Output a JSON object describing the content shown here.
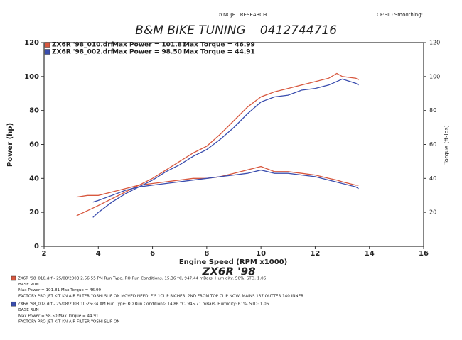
{
  "chart_data": {
    "type": "line",
    "header_left": "DYNOJET RESEARCH",
    "header_right": "CF:SID Smoothing:",
    "title": "B&M BIKE TUNING",
    "phone": "0412744716",
    "subtitle": "ZX6R '98",
    "x_label": "Engine Speed (RPM x1000)",
    "y_label": "Power (hp)",
    "y2_label": "Torque (ft-lbs)",
    "xlim": [
      2,
      16
    ],
    "xticks": [
      2,
      4,
      6,
      8,
      10,
      12,
      14,
      16
    ],
    "ylim": [
      0,
      120
    ],
    "yticks": [
      0,
      20,
      40,
      60,
      80,
      100,
      120
    ],
    "y2lim": [
      0,
      120
    ],
    "y2ticks": [
      20,
      40,
      60,
      80,
      100,
      120
    ],
    "series": [
      {
        "name": "ZX6R '98_010.drf",
        "color": "#d8583f",
        "max_power_label": "Max Power = 101.81",
        "max_torque_label": "Max Torque = 46.99",
        "x": [
          3.2,
          3.6,
          4,
          4.5,
          5,
          5.5,
          6,
          6.5,
          7,
          7.5,
          8,
          8.5,
          9,
          9.5,
          10,
          10.5,
          11,
          11.5,
          12,
          12.5,
          12.8,
          13,
          13.5,
          13.6
        ],
        "values": [
          18,
          21,
          24,
          28,
          32,
          36,
          40,
          45,
          50,
          55,
          59,
          66,
          74,
          82,
          88,
          91,
          93,
          95,
          97,
          99,
          101.81,
          100,
          99,
          98
        ],
        "torque": [
          29,
          30,
          30,
          32,
          34,
          36,
          37,
          38,
          39,
          40,
          40,
          41,
          43,
          45,
          46.99,
          44,
          44,
          43,
          42,
          40,
          39,
          38,
          36,
          36
        ]
      },
      {
        "name": "ZX6R '98_002.drf",
        "color": "#3a4dae",
        "max_power_label": "Max Power = 98.50",
        "max_torque_label": "Max Torque = 44.91",
        "x": [
          3.8,
          4,
          4.5,
          5,
          5.5,
          6,
          6.5,
          7,
          7.5,
          8,
          8.5,
          9,
          9.5,
          10,
          10.5,
          11,
          11.5,
          12,
          12.5,
          13,
          13.5,
          13.6
        ],
        "values": [
          17,
          20,
          26,
          31,
          35,
          39,
          44,
          48,
          53,
          57,
          63,
          70,
          78,
          85,
          88,
          89,
          92,
          93,
          95,
          98.5,
          96,
          95
        ],
        "torque": [
          26,
          27,
          30,
          33,
          35,
          36,
          37,
          38,
          39,
          40,
          41,
          42,
          43,
          44.91,
          43,
          43,
          42,
          41,
          39,
          37,
          35,
          34
        ]
      }
    ],
    "run_notes": [
      {
        "color": "#d8583f",
        "lines": [
          "ZX6R '98_010.drf - 25/08/2003 2:56:55 PM   Run Type: RO   Run Conditions: 15.36 °C, 947.44 mBars, Humidity: 50%, STD: 1.06",
          "BASE RUN",
          "Max Power = 101.81  Max Torque = 46.99",
          "FACTORY PRO JET KIT KN AIR FILTER YOSHI SLIP ON MOVED NEEDLE'S 1CLIP RICHER, 2ND FROM TOP CLIP NOW, MAINS 137 OUTTER 140 INNER"
        ]
      },
      {
        "color": "#3a4dae",
        "lines": [
          "ZX6R '98_002.drf - 25/08/2003 10:26:34 AM   Run Type: RO   Run Conditions: 14.86 °C, 945.71 mBars, Humidity: 61%, STD: 1.06",
          "BASE RUN",
          "Max Power = 98.50  Max Torque = 44.91",
          "FACTORY PRO JET KIT KN AIR FILTER YOSHI SLIP ON"
        ]
      }
    ]
  }
}
